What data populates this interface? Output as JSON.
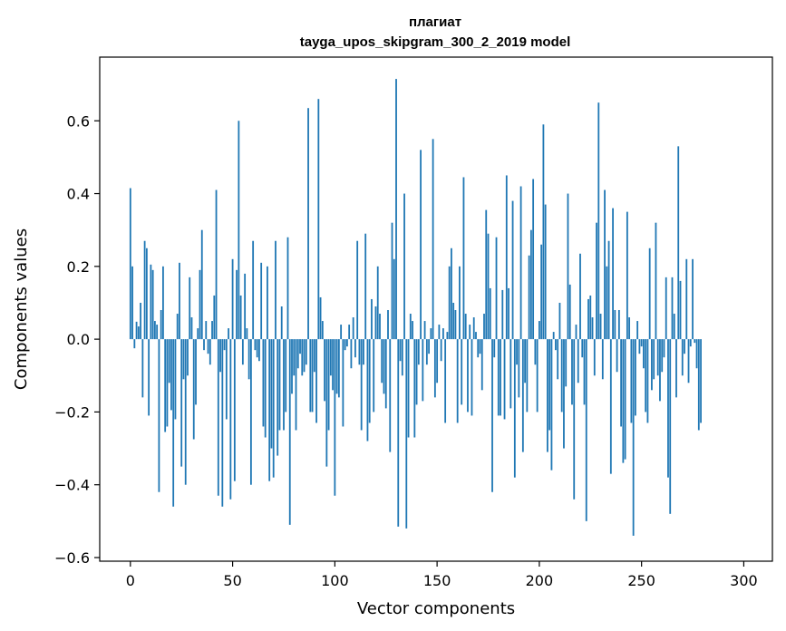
{
  "chart_data": {
    "type": "bar",
    "title": "плагиат",
    "subtitle": "tayga_upos_skipgram_300_2_2019 model",
    "xlabel": "Vector components",
    "ylabel": "Components values",
    "xlim": [
      -15,
      314
    ],
    "ylim": [
      -0.61,
      0.775
    ],
    "x_ticks": [
      0,
      50,
      100,
      150,
      200,
      250,
      300
    ],
    "x_tick_labels": [
      "0",
      "50",
      "100",
      "150",
      "200",
      "250",
      "300"
    ],
    "y_ticks": [
      -0.6,
      -0.4,
      -0.2,
      0.0,
      0.2,
      0.4,
      0.6
    ],
    "y_tick_labels": [
      "−0.6",
      "−0.4",
      "−0.2",
      "0.0",
      "0.2",
      "0.4",
      "0.6"
    ],
    "grid": false,
    "bar_color": "#1f77b4",
    "values": [
      0.415,
      0.2,
      -0.025,
      0.048,
      0.035,
      0.1,
      -0.16,
      0.27,
      0.25,
      -0.21,
      0.205,
      0.19,
      0.05,
      0.04,
      -0.42,
      0.08,
      0.2,
      -0.255,
      -0.24,
      -0.12,
      -0.195,
      -0.46,
      -0.22,
      0.07,
      0.21,
      -0.35,
      -0.11,
      -0.4,
      -0.1,
      0.17,
      0.06,
      -0.275,
      -0.18,
      0.03,
      0.19,
      0.3,
      -0.03,
      0.05,
      -0.04,
      -0.07,
      0.05,
      0.12,
      0.41,
      -0.43,
      -0.09,
      -0.46,
      -0.03,
      -0.22,
      0.03,
      -0.44,
      0.22,
      -0.39,
      0.19,
      0.6,
      0.12,
      -0.07,
      0.18,
      0.03,
      -0.11,
      -0.4,
      0.27,
      -0.03,
      -0.05,
      -0.06,
      0.21,
      -0.24,
      -0.27,
      0.2,
      -0.39,
      -0.3,
      -0.38,
      0.27,
      -0.32,
      -0.25,
      0.09,
      -0.25,
      -0.2,
      0.28,
      -0.51,
      -0.15,
      -0.1,
      -0.25,
      -0.08,
      -0.04,
      -0.1,
      -0.09,
      -0.07,
      0.635,
      -0.2,
      -0.2,
      -0.09,
      -0.23,
      0.66,
      0.115,
      0.05,
      -0.17,
      -0.35,
      -0.25,
      -0.1,
      -0.14,
      -0.43,
      -0.15,
      -0.16,
      0.04,
      -0.24,
      -0.03,
      -0.02,
      0.04,
      -0.08,
      0.06,
      -0.05,
      0.27,
      -0.07,
      -0.25,
      -0.07,
      0.29,
      -0.28,
      -0.23,
      0.11,
      -0.2,
      0.09,
      0.2,
      0.07,
      -0.12,
      -0.15,
      -0.19,
      0.08,
      -0.31,
      0.32,
      0.22,
      0.715,
      -0.515,
      -0.06,
      -0.1,
      0.4,
      -0.52,
      -0.27,
      0.07,
      0.05,
      -0.27,
      -0.18,
      -0.07,
      0.52,
      -0.17,
      0.05,
      -0.07,
      -0.04,
      0.03,
      0.55,
      -0.16,
      -0.12,
      0.04,
      -0.06,
      0.03,
      -0.23,
      0.02,
      0.2,
      0.25,
      0.1,
      0.08,
      -0.23,
      0.2,
      -0.18,
      0.445,
      0.07,
      -0.2,
      0.04,
      -0.21,
      0.06,
      0.02,
      -0.05,
      -0.04,
      -0.14,
      0.07,
      0.355,
      0.29,
      0.14,
      -0.42,
      -0.05,
      0.28,
      -0.21,
      -0.21,
      0.135,
      -0.22,
      0.45,
      0.14,
      -0.19,
      0.38,
      -0.38,
      -0.07,
      -0.16,
      0.42,
      -0.31,
      -0.12,
      -0.2,
      0.23,
      0.3,
      0.44,
      -0.07,
      -0.2,
      0.05,
      0.26,
      0.59,
      0.37,
      -0.31,
      -0.25,
      -0.36,
      0.02,
      -0.03,
      -0.11,
      0.1,
      -0.2,
      -0.3,
      -0.13,
      0.4,
      0.15,
      -0.18,
      -0.44,
      0.04,
      -0.12,
      0.235,
      -0.05,
      -0.18,
      -0.5,
      0.11,
      0.12,
      0.06,
      -0.1,
      0.32,
      0.65,
      0.07,
      -0.11,
      0.41,
      0.2,
      0.27,
      -0.37,
      0.36,
      0.08,
      -0.09,
      0.08,
      -0.24,
      -0.34,
      -0.33,
      0.35,
      0.06,
      -0.23,
      -0.54,
      -0.21,
      0.05,
      -0.04,
      -0.02,
      -0.08,
      -0.2,
      -0.23,
      0.25,
      -0.14,
      -0.11,
      0.32,
      -0.1,
      -0.17,
      -0.09,
      -0.05,
      0.17,
      -0.38,
      -0.48,
      0.17,
      0.07,
      -0.16,
      0.53,
      0.16,
      -0.1,
      -0.04,
      0.22,
      -0.12,
      -0.02,
      0.22,
      -0.01,
      -0.08,
      -0.25,
      -0.23
    ]
  }
}
